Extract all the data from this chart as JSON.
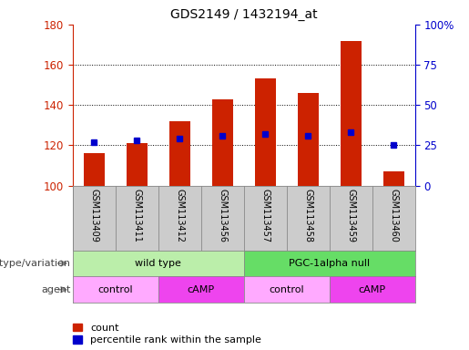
{
  "title": "GDS2149 / 1432194_at",
  "samples": [
    "GSM113409",
    "GSM113411",
    "GSM113412",
    "GSM113456",
    "GSM113457",
    "GSM113458",
    "GSM113459",
    "GSM113460"
  ],
  "count_values": [
    116,
    121,
    132,
    143,
    153,
    146,
    172,
    107
  ],
  "percentile_values": [
    27,
    28,
    29,
    31,
    32,
    31,
    33,
    25
  ],
  "bar_bottom": 100,
  "ylim_left": [
    100,
    180
  ],
  "ylim_right": [
    0,
    100
  ],
  "yticks_left": [
    100,
    120,
    140,
    160,
    180
  ],
  "yticks_right": [
    0,
    25,
    50,
    75,
    100
  ],
  "yticklabels_right": [
    "0",
    "25",
    "50",
    "75",
    "100%"
  ],
  "bar_color": "#cc2200",
  "percentile_color": "#0000cc",
  "bar_width": 0.5,
  "genotype_groups": [
    {
      "label": "wild type",
      "span": [
        0,
        4
      ],
      "color": "#bbeeaa"
    },
    {
      "label": "PGC-1alpha null",
      "span": [
        4,
        8
      ],
      "color": "#66dd66"
    }
  ],
  "agent_groups": [
    {
      "label": "control",
      "span": [
        0,
        2
      ],
      "color": "#ffaaff"
    },
    {
      "label": "cAMP",
      "span": [
        2,
        4
      ],
      "color": "#ee44ee"
    },
    {
      "label": "control",
      "span": [
        4,
        6
      ],
      "color": "#ffaaff"
    },
    {
      "label": "cAMP",
      "span": [
        6,
        8
      ],
      "color": "#ee44ee"
    }
  ],
  "legend_count_label": "count",
  "legend_pct_label": "percentile rank within the sample",
  "genotype_label": "genotype/variation",
  "agent_label": "agent",
  "left_axis_color": "#cc2200",
  "right_axis_color": "#0000cc",
  "sample_bg_color": "#cccccc",
  "grid_yticks": [
    120,
    140,
    160
  ]
}
